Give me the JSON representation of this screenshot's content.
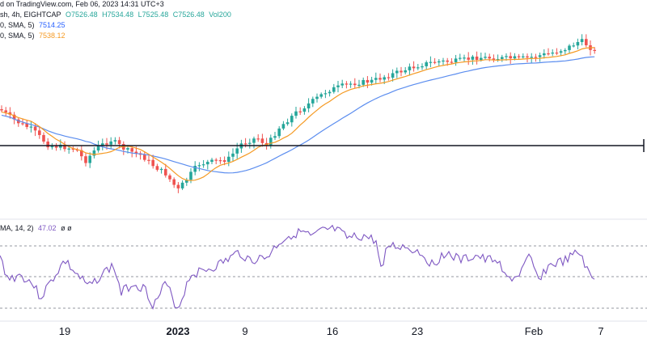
{
  "header": {
    "published_text": "d on TradingView.com, Feb 06, 2023 14:31 UTC+3",
    "symbol_text": "sh, 4h, EIGHTCAP",
    "ohlc": [
      "O7526.48",
      "H7534.48",
      "L7525.48",
      "C7526.48"
    ],
    "volume_text": "Vol200",
    "ma1_label": "0, SMA, 5)",
    "ma1_value": "7514.25",
    "ma2_label": "0, SMA, 5)",
    "ma2_value": "7538.12",
    "rsi_label": "MA, 14, 2)",
    "rsi_value": "47.02",
    "rsi_extra": "ø ø"
  },
  "colors": {
    "up": "#26a69a",
    "down": "#ef5350",
    "ma_fast": "#f59a23",
    "ma_slow": "#5b8def",
    "rsi": "#7e57c2",
    "hline": "#131722"
  },
  "chart_data": {
    "type": "candlestick",
    "x_ticks": [
      "19",
      "2023",
      "9",
      "16",
      "23",
      "Feb",
      "7"
    ],
    "horizontal_line": "support",
    "rsi_bands": [
      70,
      50,
      30
    ],
    "rsi_ylim": [
      20,
      90
    ],
    "price_ylim": [
      6700,
      7650
    ],
    "grid": false
  }
}
